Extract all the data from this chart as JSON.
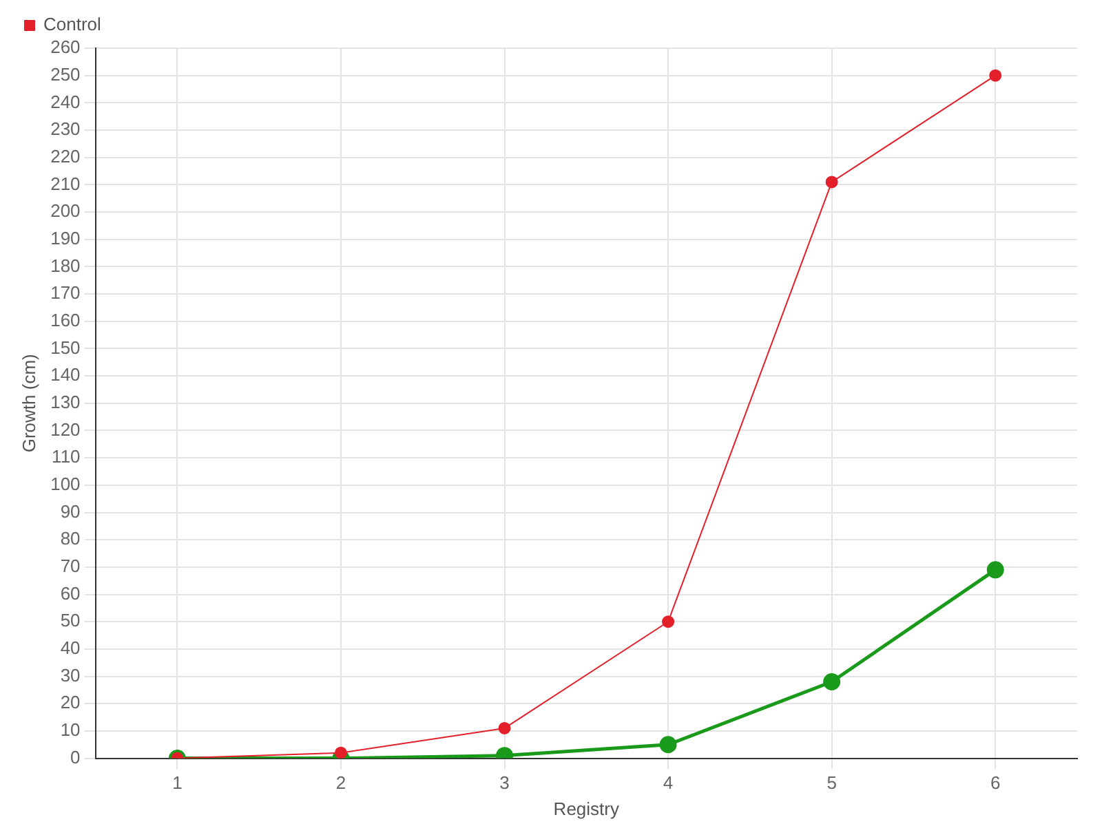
{
  "chart_data": {
    "type": "line",
    "xlabel": "Registry",
    "ylabel": "Growth (cm)",
    "categories": [
      "1",
      "2",
      "3",
      "4",
      "5",
      "6"
    ],
    "series": [
      {
        "color": "#1a9a1a",
        "values": [
          0,
          0,
          1,
          5,
          28,
          69
        ]
      },
      {
        "name": "Control",
        "color": "#e3202a",
        "values": [
          0,
          2,
          11,
          50,
          211,
          250
        ]
      }
    ],
    "ylim": [
      0,
      260
    ],
    "yticks": [
      0,
      10,
      20,
      30,
      40,
      50,
      60,
      70,
      80,
      90,
      100,
      110,
      120,
      130,
      140,
      150,
      160,
      170,
      180,
      190,
      200,
      210,
      220,
      230,
      240,
      250,
      260
    ],
    "grid": true,
    "legend": "top left",
    "marker": "circle",
    "line_style": "solid"
  }
}
